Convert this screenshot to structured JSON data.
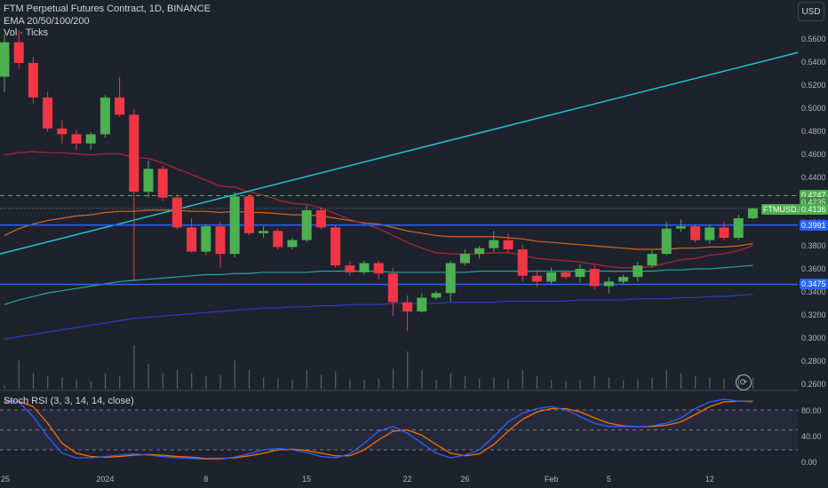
{
  "header": {
    "title": "FTM Perpetual Futures Contract, 1D, BINANCE",
    "ema_label": "EMA 20/50/100/200",
    "vol_label": "Vol · Ticks"
  },
  "currency_button": "USD",
  "price_axis": [
    "0.5600",
    "0.5400",
    "0.5200",
    "0.5000",
    "0.4800",
    "0.4600",
    "0.4400",
    "0.4200",
    "0.4000",
    "0.3800",
    "0.3600",
    "0.3400",
    "0.3200",
    "0.3000",
    "0.2800",
    "0.2600"
  ],
  "price_tags": {
    "upper_dashed": "0.4247",
    "hidden_behind": "0.4235",
    "symbol": "FTMUSD.P",
    "last": "0.4136",
    "blue_upper": "0.3991",
    "blue_lower": "0.3475"
  },
  "stoch": {
    "label": "Stoch RSI (3, 3, 14, 14, close)",
    "axis": [
      "80.00",
      "40.00",
      "0.00"
    ]
  },
  "date_axis": [
    "25",
    "2024",
    "8",
    "15",
    "22",
    "26",
    "Feb",
    "5",
    "12"
  ],
  "chart_data": {
    "type": "candlestick",
    "title": "FTM Perpetual Futures Contract, 1D, BINANCE",
    "ylim": [
      0.255,
      0.575
    ],
    "candles": [
      {
        "o": 0.528,
        "h": 0.565,
        "l": 0.515,
        "c": 0.558
      },
      {
        "o": 0.558,
        "h": 0.568,
        "l": 0.535,
        "c": 0.54
      },
      {
        "o": 0.54,
        "h": 0.545,
        "l": 0.505,
        "c": 0.51
      },
      {
        "o": 0.51,
        "h": 0.515,
        "l": 0.48,
        "c": 0.483
      },
      {
        "o": 0.483,
        "h": 0.49,
        "l": 0.47,
        "c": 0.478
      },
      {
        "o": 0.478,
        "h": 0.482,
        "l": 0.464,
        "c": 0.47
      },
      {
        "o": 0.47,
        "h": 0.48,
        "l": 0.465,
        "c": 0.478
      },
      {
        "o": 0.478,
        "h": 0.512,
        "l": 0.475,
        "c": 0.51
      },
      {
        "o": 0.51,
        "h": 0.528,
        "l": 0.493,
        "c": 0.495
      },
      {
        "o": 0.495,
        "h": 0.5,
        "l": 0.35,
        "c": 0.428
      },
      {
        "o": 0.428,
        "h": 0.455,
        "l": 0.423,
        "c": 0.448
      },
      {
        "o": 0.448,
        "h": 0.451,
        "l": 0.42,
        "c": 0.423
      },
      {
        "o": 0.423,
        "h": 0.426,
        "l": 0.395,
        "c": 0.397
      },
      {
        "o": 0.397,
        "h": 0.405,
        "l": 0.375,
        "c": 0.376
      },
      {
        "o": 0.376,
        "h": 0.4,
        "l": 0.373,
        "c": 0.398
      },
      {
        "o": 0.398,
        "h": 0.402,
        "l": 0.362,
        "c": 0.374
      },
      {
        "o": 0.374,
        "h": 0.428,
        "l": 0.371,
        "c": 0.424
      },
      {
        "o": 0.424,
        "h": 0.426,
        "l": 0.39,
        "c": 0.392
      },
      {
        "o": 0.392,
        "h": 0.398,
        "l": 0.388,
        "c": 0.394
      },
      {
        "o": 0.394,
        "h": 0.396,
        "l": 0.378,
        "c": 0.38
      },
      {
        "o": 0.38,
        "h": 0.388,
        "l": 0.378,
        "c": 0.386
      },
      {
        "o": 0.386,
        "h": 0.416,
        "l": 0.384,
        "c": 0.412
      },
      {
        "o": 0.412,
        "h": 0.414,
        "l": 0.395,
        "c": 0.397
      },
      {
        "o": 0.397,
        "h": 0.399,
        "l": 0.362,
        "c": 0.364
      },
      {
        "o": 0.364,
        "h": 0.368,
        "l": 0.355,
        "c": 0.358
      },
      {
        "o": 0.358,
        "h": 0.368,
        "l": 0.356,
        "c": 0.366
      },
      {
        "o": 0.366,
        "h": 0.368,
        "l": 0.352,
        "c": 0.357
      },
      {
        "o": 0.357,
        "h": 0.362,
        "l": 0.32,
        "c": 0.332
      },
      {
        "o": 0.332,
        "h": 0.338,
        "l": 0.307,
        "c": 0.324
      },
      {
        "o": 0.324,
        "h": 0.34,
        "l": 0.323,
        "c": 0.336
      },
      {
        "o": 0.336,
        "h": 0.342,
        "l": 0.334,
        "c": 0.34
      },
      {
        "o": 0.34,
        "h": 0.368,
        "l": 0.333,
        "c": 0.366
      },
      {
        "o": 0.366,
        "h": 0.378,
        "l": 0.364,
        "c": 0.374
      },
      {
        "o": 0.374,
        "h": 0.381,
        "l": 0.37,
        "c": 0.379
      },
      {
        "o": 0.379,
        "h": 0.394,
        "l": 0.376,
        "c": 0.386
      },
      {
        "o": 0.386,
        "h": 0.392,
        "l": 0.375,
        "c": 0.378
      },
      {
        "o": 0.378,
        "h": 0.382,
        "l": 0.35,
        "c": 0.355
      },
      {
        "o": 0.355,
        "h": 0.36,
        "l": 0.345,
        "c": 0.35
      },
      {
        "o": 0.35,
        "h": 0.362,
        "l": 0.348,
        "c": 0.358
      },
      {
        "o": 0.358,
        "h": 0.36,
        "l": 0.352,
        "c": 0.354
      },
      {
        "o": 0.354,
        "h": 0.365,
        "l": 0.349,
        "c": 0.361
      },
      {
        "o": 0.361,
        "h": 0.364,
        "l": 0.343,
        "c": 0.346
      },
      {
        "o": 0.346,
        "h": 0.354,
        "l": 0.34,
        "c": 0.35
      },
      {
        "o": 0.35,
        "h": 0.356,
        "l": 0.348,
        "c": 0.354
      },
      {
        "o": 0.354,
        "h": 0.367,
        "l": 0.35,
        "c": 0.364
      },
      {
        "o": 0.364,
        "h": 0.377,
        "l": 0.362,
        "c": 0.374
      },
      {
        "o": 0.374,
        "h": 0.402,
        "l": 0.373,
        "c": 0.396
      },
      {
        "o": 0.396,
        "h": 0.404,
        "l": 0.393,
        "c": 0.398
      },
      {
        "o": 0.398,
        "h": 0.4,
        "l": 0.384,
        "c": 0.386
      },
      {
        "o": 0.386,
        "h": 0.399,
        "l": 0.383,
        "c": 0.397
      },
      {
        "o": 0.397,
        "h": 0.402,
        "l": 0.386,
        "c": 0.388
      },
      {
        "o": 0.388,
        "h": 0.408,
        "l": 0.386,
        "c": 0.405
      },
      {
        "o": 0.405,
        "h": 0.414,
        "l": 0.404,
        "c": 0.4136
      }
    ],
    "volume": [
      0.05,
      0.45,
      0.25,
      0.2,
      0.18,
      0.15,
      0.12,
      0.25,
      0.2,
      0.7,
      0.4,
      0.25,
      0.3,
      0.25,
      0.2,
      0.22,
      0.45,
      0.3,
      0.18,
      0.16,
      0.14,
      0.3,
      0.22,
      0.28,
      0.15,
      0.14,
      0.16,
      0.32,
      0.6,
      0.3,
      0.14,
      0.25,
      0.2,
      0.16,
      0.18,
      0.15,
      0.3,
      0.2,
      0.14,
      0.12,
      0.13,
      0.2,
      0.18,
      0.13,
      0.15,
      0.18,
      0.3,
      0.25,
      0.2,
      0.18,
      0.16,
      0.22,
      0.18
    ],
    "ema20": [
      0.46,
      0.462,
      0.463,
      0.462,
      0.462,
      0.461,
      0.46,
      0.461,
      0.461,
      0.458,
      0.457,
      0.453,
      0.448,
      0.443,
      0.438,
      0.433,
      0.432,
      0.428,
      0.425,
      0.421,
      0.418,
      0.417,
      0.414,
      0.409,
      0.404,
      0.4,
      0.396,
      0.39,
      0.384,
      0.379,
      0.375,
      0.374,
      0.374,
      0.374,
      0.375,
      0.375,
      0.373,
      0.37,
      0.369,
      0.368,
      0.367,
      0.365,
      0.363,
      0.362,
      0.362,
      0.363,
      0.366,
      0.369,
      0.37,
      0.373,
      0.374,
      0.377,
      0.381
    ],
    "ema50": [
      0.39,
      0.396,
      0.4,
      0.403,
      0.405,
      0.407,
      0.408,
      0.41,
      0.411,
      0.411,
      0.412,
      0.412,
      0.412,
      0.411,
      0.411,
      0.41,
      0.411,
      0.41,
      0.41,
      0.409,
      0.408,
      0.408,
      0.407,
      0.405,
      0.403,
      0.401,
      0.4,
      0.397,
      0.394,
      0.392,
      0.39,
      0.389,
      0.389,
      0.389,
      0.389,
      0.388,
      0.387,
      0.385,
      0.384,
      0.383,
      0.382,
      0.381,
      0.38,
      0.379,
      0.378,
      0.378,
      0.378,
      0.379,
      0.379,
      0.38,
      0.38,
      0.381,
      0.383
    ],
    "ema100": [
      0.33,
      0.334,
      0.337,
      0.34,
      0.342,
      0.344,
      0.346,
      0.348,
      0.35,
      0.351,
      0.352,
      0.353,
      0.354,
      0.355,
      0.356,
      0.356,
      0.357,
      0.357,
      0.358,
      0.358,
      0.358,
      0.358,
      0.359,
      0.359,
      0.359,
      0.359,
      0.359,
      0.358,
      0.358,
      0.358,
      0.358,
      0.358,
      0.358,
      0.359,
      0.359,
      0.359,
      0.359,
      0.359,
      0.359,
      0.359,
      0.359,
      0.359,
      0.359,
      0.359,
      0.359,
      0.359,
      0.36,
      0.36,
      0.361,
      0.361,
      0.362,
      0.363,
      0.364
    ],
    "ema200": [
      0.3,
      0.302,
      0.304,
      0.306,
      0.308,
      0.31,
      0.312,
      0.314,
      0.316,
      0.318,
      0.319,
      0.32,
      0.321,
      0.322,
      0.323,
      0.324,
      0.325,
      0.326,
      0.327,
      0.327,
      0.328,
      0.328,
      0.329,
      0.329,
      0.33,
      0.33,
      0.33,
      0.331,
      0.331,
      0.331,
      0.331,
      0.332,
      0.332,
      0.332,
      0.332,
      0.333,
      0.333,
      0.333,
      0.333,
      0.333,
      0.334,
      0.334,
      0.334,
      0.334,
      0.335,
      0.335,
      0.335,
      0.336,
      0.336,
      0.337,
      0.337,
      0.338,
      0.339
    ],
    "stoch_k": [
      95,
      92,
      70,
      40,
      15,
      8,
      8,
      10,
      12,
      14,
      12,
      10,
      8,
      7,
      6,
      6,
      9,
      14,
      20,
      22,
      20,
      16,
      10,
      8,
      14,
      30,
      48,
      55,
      45,
      30,
      15,
      8,
      12,
      20,
      40,
      62,
      75,
      82,
      85,
      80,
      70,
      60,
      55,
      55,
      55,
      56,
      60,
      68,
      82,
      92,
      96,
      93,
      92
    ],
    "stoch_d": [
      92,
      93,
      85,
      60,
      30,
      15,
      10,
      9,
      10,
      12,
      13,
      12,
      10,
      9,
      7,
      7,
      8,
      11,
      15,
      20,
      21,
      19,
      15,
      11,
      11,
      20,
      35,
      48,
      50,
      42,
      28,
      15,
      11,
      14,
      28,
      48,
      66,
      77,
      82,
      82,
      77,
      68,
      60,
      56,
      55,
      55,
      57,
      62,
      73,
      85,
      92,
      93,
      93
    ],
    "lines": {
      "trend_start": 0.374,
      "trend_end": 0.549,
      "dashed_level": 0.4247,
      "dotted_level": 0.4136,
      "blue_upper": 0.3991,
      "blue_lower": 0.3475
    },
    "colors": {
      "up": "#4caf50",
      "down": "#f23645",
      "ema20": "#b2263a",
      "ema50": "#d2691e",
      "ema100": "#26a69a",
      "ema200": "#2a3fbf",
      "trend": "#22c3d6",
      "hline": "#2962ff",
      "dashed": "#4caf50",
      "stoch_k": "#2962ff",
      "stoch_d": "#ff6d00"
    }
  }
}
